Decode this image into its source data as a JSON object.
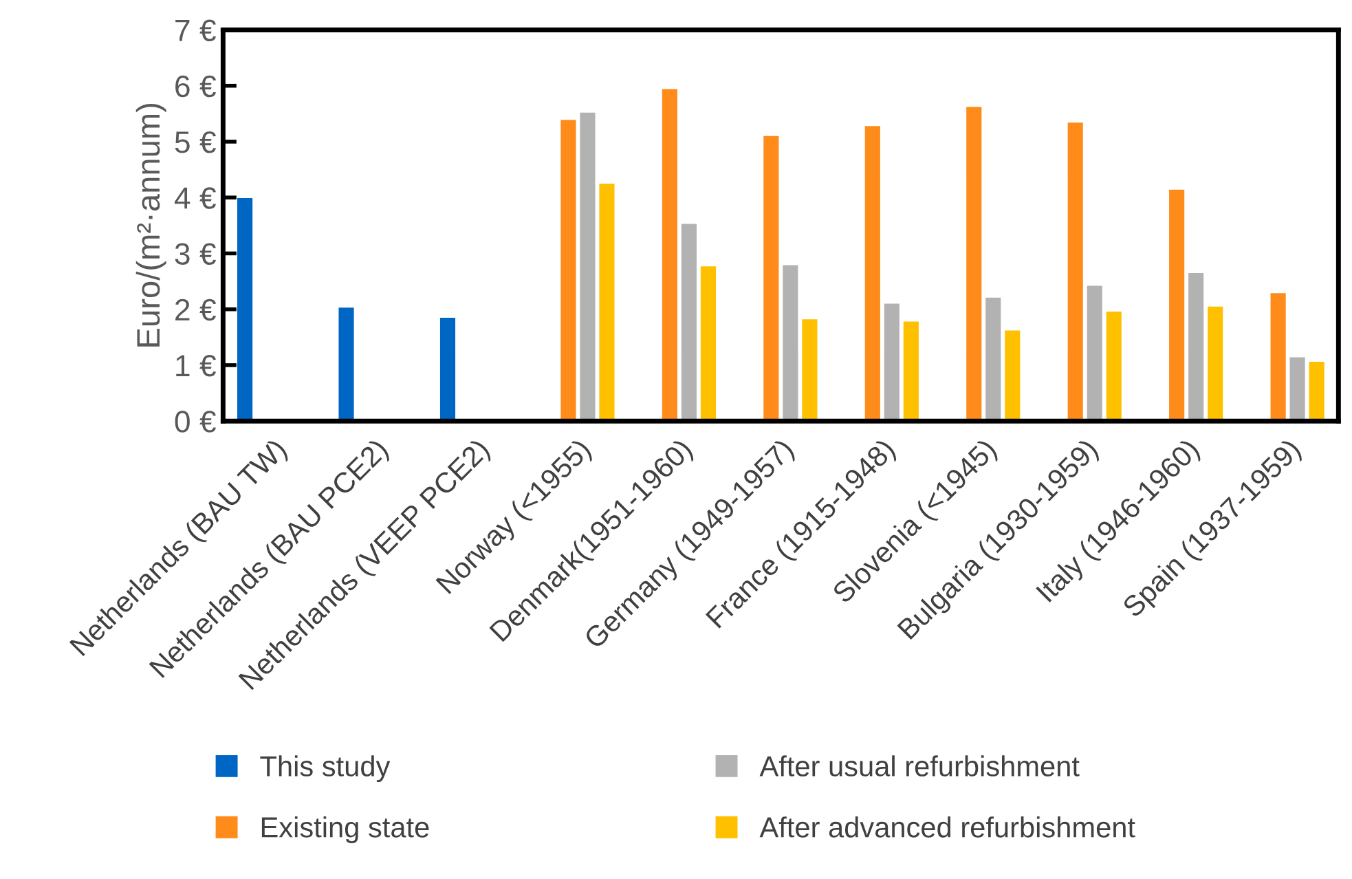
{
  "chart_data": {
    "type": "bar",
    "categories": [
      "Netherlands (BAU TW)",
      "Netherlands (BAU PCE2)",
      "Netherlands (VEEP PCE2)",
      "Norway (<1955)",
      "Denmark(1951-1960)",
      "Germany (1949-1957)",
      "France (1915-1948)",
      "Slovenia (<1945)",
      "Bulgaria (1930-1959)",
      "Italy (1946-1960)",
      "Spain (1937-1959)"
    ],
    "series": [
      {
        "name": "This study",
        "color": "#0066c4",
        "values": [
          4.0,
          2.04,
          1.86,
          null,
          null,
          null,
          null,
          null,
          null,
          null,
          null
        ]
      },
      {
        "name": "Existing state",
        "color": "#ff8c1a",
        "values": [
          null,
          null,
          null,
          5.4,
          5.95,
          5.11,
          5.29,
          5.63,
          5.35,
          4.15,
          2.3
        ]
      },
      {
        "name": "After usual refurbishment",
        "color": "#b2b2b2",
        "values": [
          null,
          null,
          null,
          5.53,
          3.54,
          2.8,
          2.11,
          2.22,
          2.43,
          2.66,
          1.15
        ]
      },
      {
        "name": "After advanced refurbishment",
        "color": "#ffc000",
        "values": [
          null,
          null,
          null,
          4.26,
          2.78,
          1.83,
          1.79,
          1.63,
          1.97,
          2.06,
          1.07
        ]
      }
    ],
    "ylabel": "Euro/(m²·annum)",
    "ylim": [
      0,
      7
    ],
    "yticks": [
      {
        "value": 0,
        "label": "0 €"
      },
      {
        "value": 1,
        "label": "1 €"
      },
      {
        "value": 2,
        "label": "2 €"
      },
      {
        "value": 3,
        "label": "3 €"
      },
      {
        "value": 4,
        "label": "4 €"
      },
      {
        "value": 5,
        "label": "5 €"
      },
      {
        "value": 6,
        "label": "6 €"
      },
      {
        "value": 7,
        "label": "7 €"
      }
    ],
    "grid": false,
    "legend": "bottom"
  }
}
